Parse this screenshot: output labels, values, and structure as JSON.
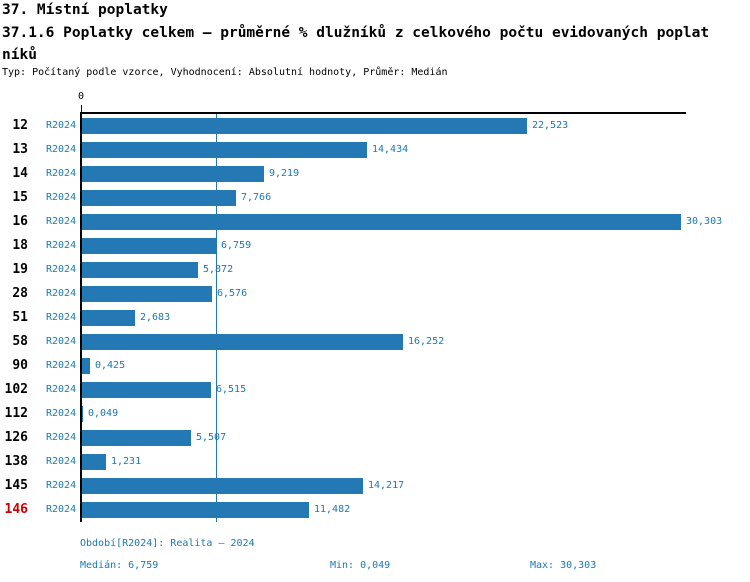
{
  "header": {
    "report_title": "37. Místní poplatky",
    "chart_title_line1": "37.1.6 Poplatky celkem – průměrné % dlužníků z celkového počtu evidovaných poplat",
    "chart_title_line2": "níků",
    "subtitle": "Typ: Počítaný podle vzorce, Vyhodnocení: Absolutní hodnoty, Průměr: Medián"
  },
  "chart_data": {
    "type": "bar",
    "orientation": "horizontal",
    "title": "37.1.6 Poplatky celkem – průměrné % dlužníků z celkového počtu evidovaných poplatníků",
    "zero_tick_label": "0",
    "xlim": [
      0,
      30.5
    ],
    "grid": false,
    "median_line_value": 6.759,
    "series_label": "R2024",
    "categories": [
      "12",
      "13",
      "14",
      "15",
      "16",
      "18",
      "19",
      "28",
      "51",
      "58",
      "90",
      "102",
      "112",
      "126",
      "138",
      "145",
      "146"
    ],
    "values": [
      22.523,
      14.434,
      9.219,
      7.766,
      30.303,
      6.759,
      5.872,
      6.576,
      2.683,
      16.252,
      0.425,
      6.515,
      0.049,
      5.507,
      1.231,
      14.217,
      11.482
    ],
    "value_labels": [
      "22,523",
      "14,434",
      "9,219",
      "7,766",
      "30,303",
      "6,759",
      "5,872",
      "6,576",
      "2,683",
      "16,252",
      "0,425",
      "6,515",
      "0,049",
      "5,507",
      "1,231",
      "14,217",
      "11,482"
    ],
    "highlighted_category": "146"
  },
  "footer": {
    "period_line": "Období[R2024]: Realita – 2024",
    "median_stat": "Medián: 6,759",
    "min_stat": "Min: 0,049",
    "max_stat": "Max: 30,303"
  },
  "colors": {
    "bar": "#2478b4",
    "median_line": "#2478b4",
    "blue_text": "#1b78b2",
    "highlight_red": "#cc0000",
    "axis": "#000000"
  }
}
